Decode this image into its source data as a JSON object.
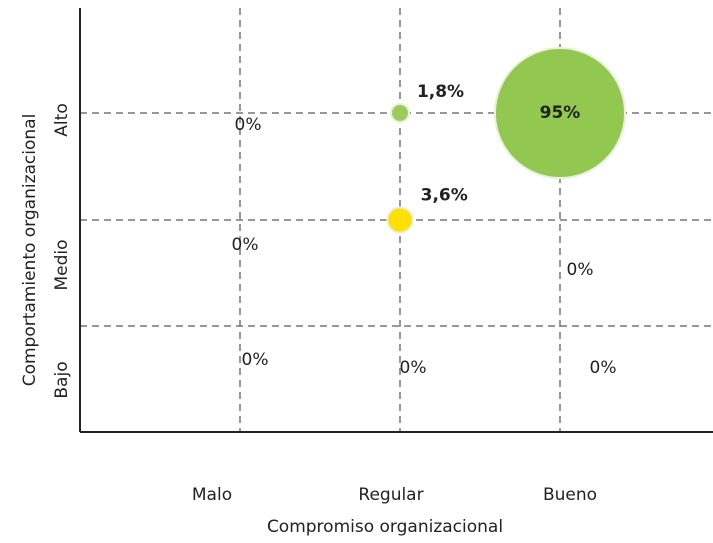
{
  "chart_data": {
    "type": "bubble",
    "x_label": "Compromiso organizacional",
    "y_label": "Comportamiento organizacional",
    "x_categories": [
      "Malo",
      "Regular",
      "Bueno"
    ],
    "y_categories": [
      "Bajo",
      "Medio",
      "Alto"
    ],
    "points": [
      {
        "x": "Malo",
        "y": "Alto",
        "value": 0,
        "value_label": "0%",
        "color": "#92c84f"
      },
      {
        "x": "Regular",
        "y": "Alto",
        "value": 1.8,
        "value_label": "1,8%",
        "color": "#9bcb5a"
      },
      {
        "x": "Bueno",
        "y": "Alto",
        "value": 95,
        "value_label": "95%",
        "color": "#92c84f"
      },
      {
        "x": "Malo",
        "y": "Medio",
        "value": 0,
        "value_label": "0%",
        "color": "#92c84f"
      },
      {
        "x": "Regular",
        "y": "Medio",
        "value": 3.6,
        "value_label": "3,6%",
        "color": "#ffe000"
      },
      {
        "x": "Bueno",
        "y": "Medio",
        "value": 0,
        "value_label": "0%",
        "color": "#92c84f"
      },
      {
        "x": "Malo",
        "y": "Bajo",
        "value": 0,
        "value_label": "0%",
        "color": "#92c84f"
      },
      {
        "x": "Regular",
        "y": "Bajo",
        "value": 0,
        "value_label": "0%",
        "color": "#92c84f"
      },
      {
        "x": "Bueno",
        "y": "Bajo",
        "value": 0,
        "value_label": "0%",
        "color": "#92c84f"
      }
    ]
  }
}
